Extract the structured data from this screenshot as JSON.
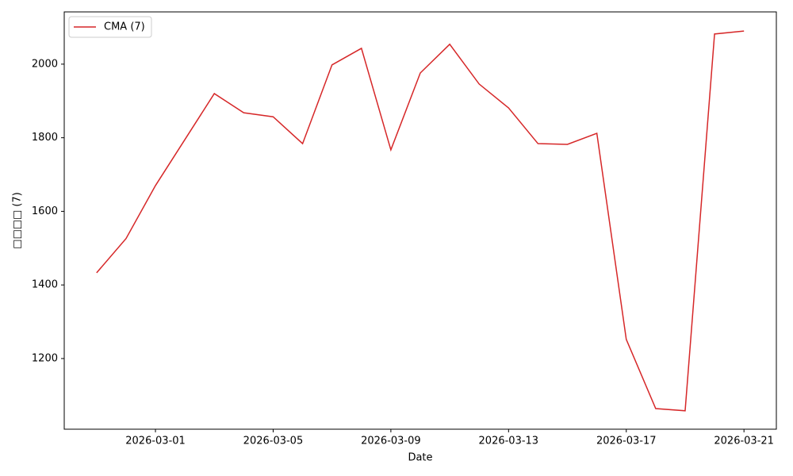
{
  "chart_data": {
    "type": "line",
    "xlabel": "Date",
    "ylabel": "□□□□ (7)",
    "x": [
      "2026-02-27",
      "2026-02-28",
      "2026-03-01",
      "2026-03-02",
      "2026-03-03",
      "2026-03-04",
      "2026-03-05",
      "2026-03-06",
      "2026-03-07",
      "2026-03-08",
      "2026-03-09",
      "2026-03-10",
      "2026-03-11",
      "2026-03-12",
      "2026-03-13",
      "2026-03-14",
      "2026-03-15",
      "2026-03-16",
      "2026-03-17",
      "2026-03-18",
      "2026-03-19",
      "2026-03-20",
      "2026-03-21"
    ],
    "series": [
      {
        "name": "CMA (7)",
        "color": "#d62728",
        "values": [
          1433,
          1526,
          1670,
          1795,
          1920,
          1868,
          1857,
          1784,
          1998,
          2043,
          1767,
          1976,
          2054,
          1946,
          1881,
          1784,
          1782,
          1812,
          1252,
          1064,
          1058,
          2082,
          2090
        ]
      }
    ],
    "xlim": [
      "2026-02-25T21:36Z",
      "2026-03-22T02:24Z"
    ],
    "xticks": [
      "2026-03-01",
      "2026-03-05",
      "2026-03-09",
      "2026-03-13",
      "2026-03-17",
      "2026-03-21"
    ],
    "ylim": [
      1008,
      2142
    ],
    "yticks": [
      1200,
      1400,
      1600,
      1800,
      2000
    ],
    "grid": false,
    "legend": "upper-left"
  }
}
